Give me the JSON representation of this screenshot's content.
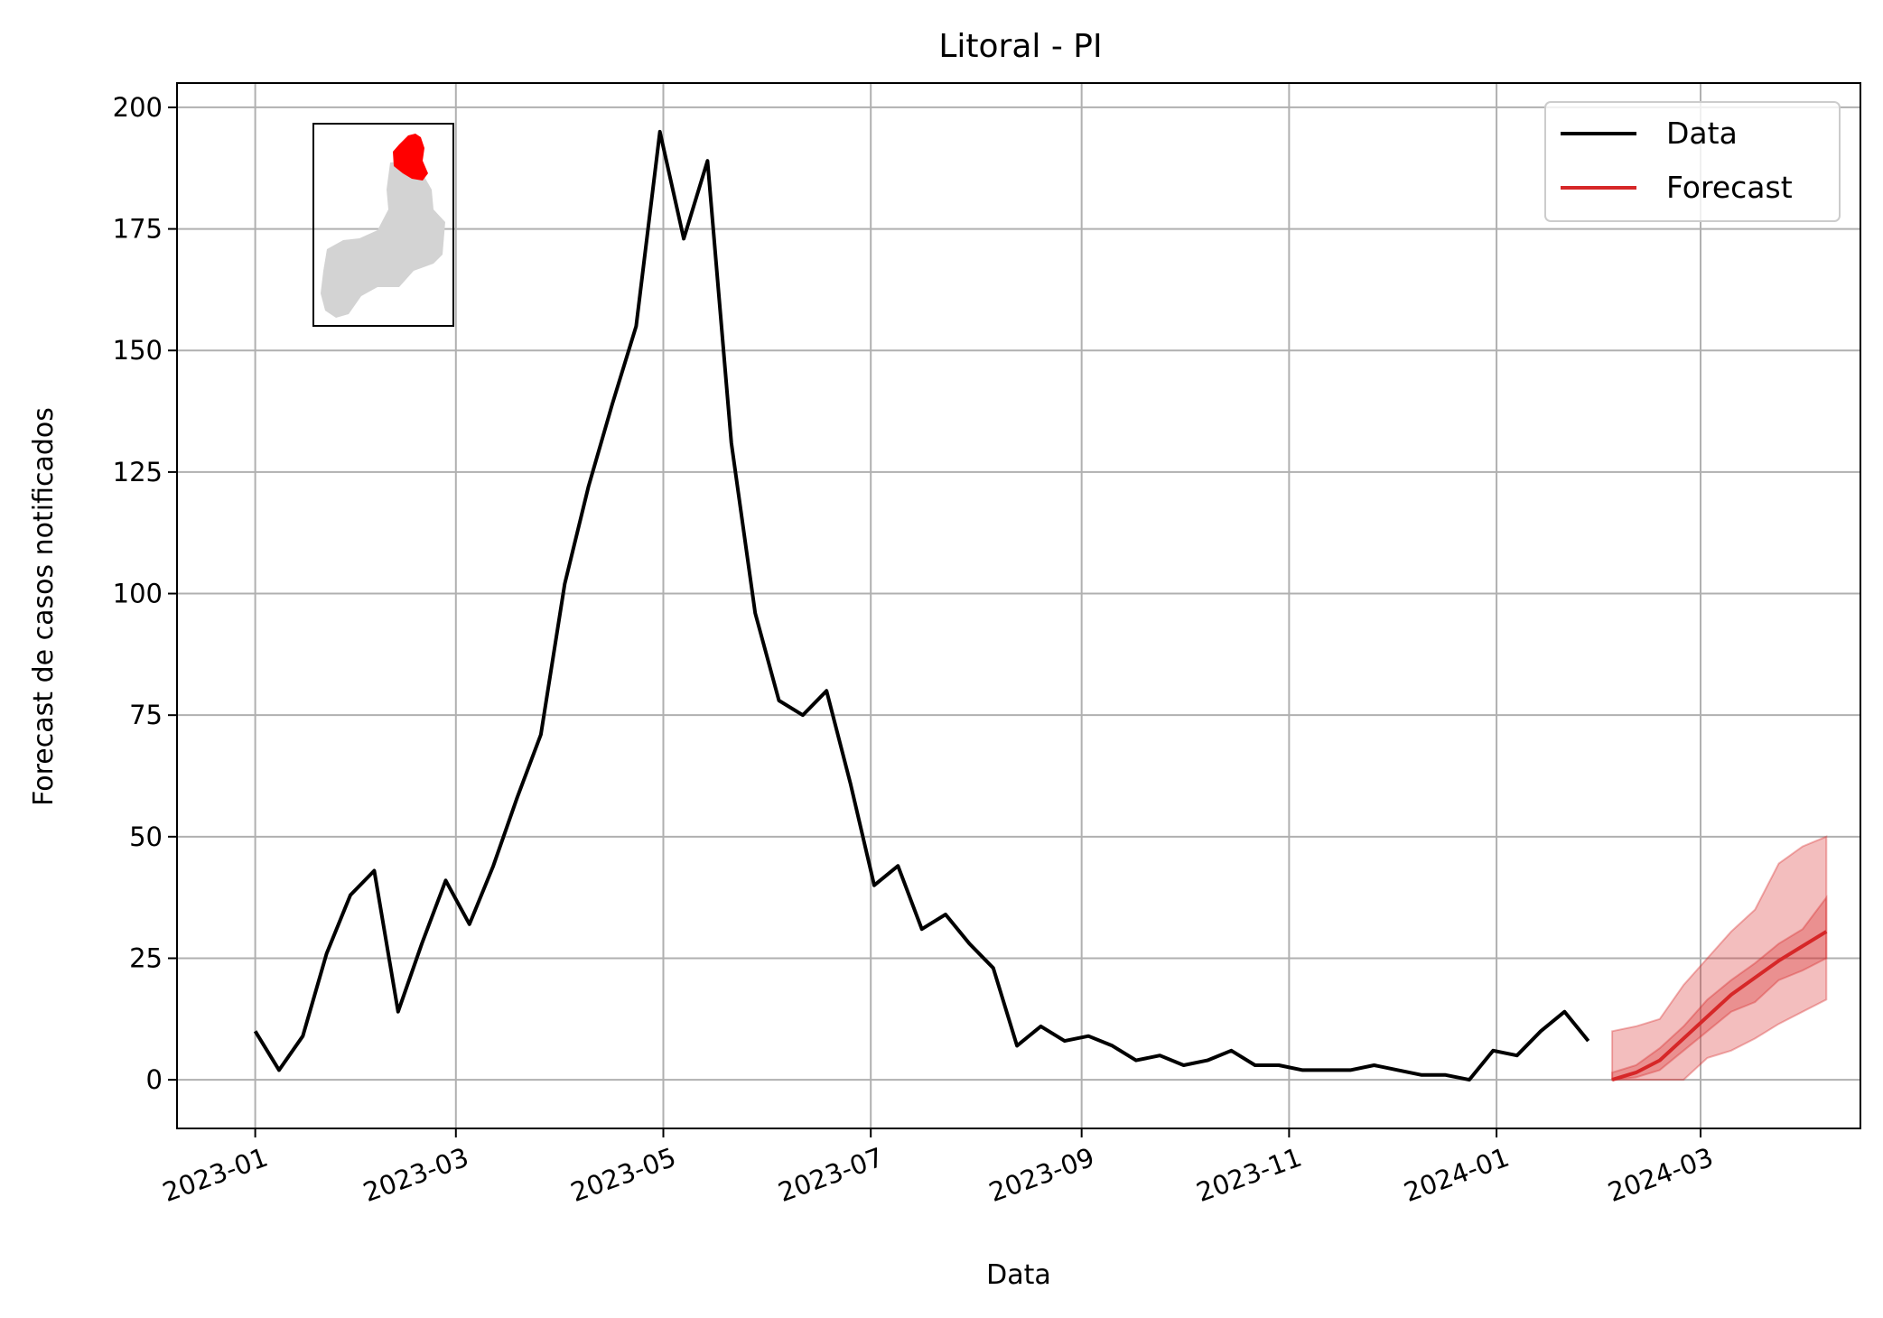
{
  "chart_data": {
    "type": "line",
    "title": "Litoral - PI",
    "xlabel": "Data",
    "ylabel": "Forecast de casos notificados",
    "xlim": [
      "2022-12-09",
      "2024-04-17"
    ],
    "ylim": [
      -10,
      205
    ],
    "grid": true,
    "legend_position": "top-right",
    "x_ticks": [
      "2023-01",
      "2023-03",
      "2023-05",
      "2023-07",
      "2023-09",
      "2023-11",
      "2024-01",
      "2024-03"
    ],
    "y_ticks": [
      0,
      25,
      50,
      75,
      100,
      125,
      150,
      175,
      200
    ],
    "colors": {
      "data": "#000000",
      "forecast": "#d62728",
      "inset_region": "#ff0000",
      "inset_state": "#d3d3d3"
    },
    "inset": {
      "type": "map",
      "description_icon": "piaui-state-map-icon"
    },
    "series": [
      {
        "name": "Data",
        "x": [
          "2023-01-01",
          "2023-01-08",
          "2023-01-15",
          "2023-01-22",
          "2023-01-29",
          "2023-02-05",
          "2023-02-12",
          "2023-02-19",
          "2023-02-26",
          "2023-03-05",
          "2023-03-12",
          "2023-03-19",
          "2023-03-26",
          "2023-04-02",
          "2023-04-09",
          "2023-04-16",
          "2023-04-23",
          "2023-04-30",
          "2023-05-07",
          "2023-05-14",
          "2023-05-21",
          "2023-05-28",
          "2023-06-04",
          "2023-06-11",
          "2023-06-18",
          "2023-06-25",
          "2023-07-02",
          "2023-07-09",
          "2023-07-16",
          "2023-07-23",
          "2023-07-30",
          "2023-08-06",
          "2023-08-13",
          "2023-08-20",
          "2023-08-27",
          "2023-09-03",
          "2023-09-10",
          "2023-09-17",
          "2023-09-24",
          "2023-10-01",
          "2023-10-08",
          "2023-10-15",
          "2023-10-22",
          "2023-10-29",
          "2023-11-05",
          "2023-11-12",
          "2023-11-19",
          "2023-11-26",
          "2023-12-03",
          "2023-12-10",
          "2023-12-17",
          "2023-12-24",
          "2023-12-31",
          "2024-01-07",
          "2024-01-14",
          "2024-01-21",
          "2024-01-28"
        ],
        "y": [
          10,
          2,
          9,
          26,
          38,
          43,
          14,
          28,
          41,
          32,
          44,
          58,
          71,
          102,
          122,
          139,
          155,
          195,
          173,
          189,
          131,
          96,
          78,
          75,
          80,
          61,
          40,
          44,
          31,
          34,
          28,
          23,
          7,
          11,
          8,
          9,
          7,
          4,
          5,
          3,
          4,
          6,
          3,
          3,
          2,
          2,
          2,
          3,
          2,
          1,
          1,
          0,
          6,
          5,
          10,
          14,
          8
        ]
      },
      {
        "name": "Forecast",
        "x": [
          "2024-02-04",
          "2024-02-11",
          "2024-02-18",
          "2024-02-25",
          "2024-03-03",
          "2024-03-10",
          "2024-03-17",
          "2024-03-24",
          "2024-03-31",
          "2024-04-07"
        ],
        "y": [
          0,
          1.5,
          4,
          8.5,
          13,
          17.5,
          21,
          24.5,
          27.5,
          30.5
        ],
        "inner_band": {
          "lower": [
            0,
            0.5,
            2,
            6,
            10,
            14,
            16,
            20.5,
            22.5,
            25
          ],
          "upper": [
            1.5,
            3,
            6.5,
            11,
            16.5,
            20.5,
            24,
            28,
            31,
            37.5
          ]
        },
        "outer_band": {
          "lower": [
            0,
            0,
            0,
            0,
            4.5,
            6,
            8.5,
            11.5,
            14,
            16.5
          ],
          "upper": [
            10,
            11,
            12.5,
            19.5,
            25,
            30.5,
            35,
            44.5,
            48,
            50
          ]
        }
      }
    ]
  }
}
